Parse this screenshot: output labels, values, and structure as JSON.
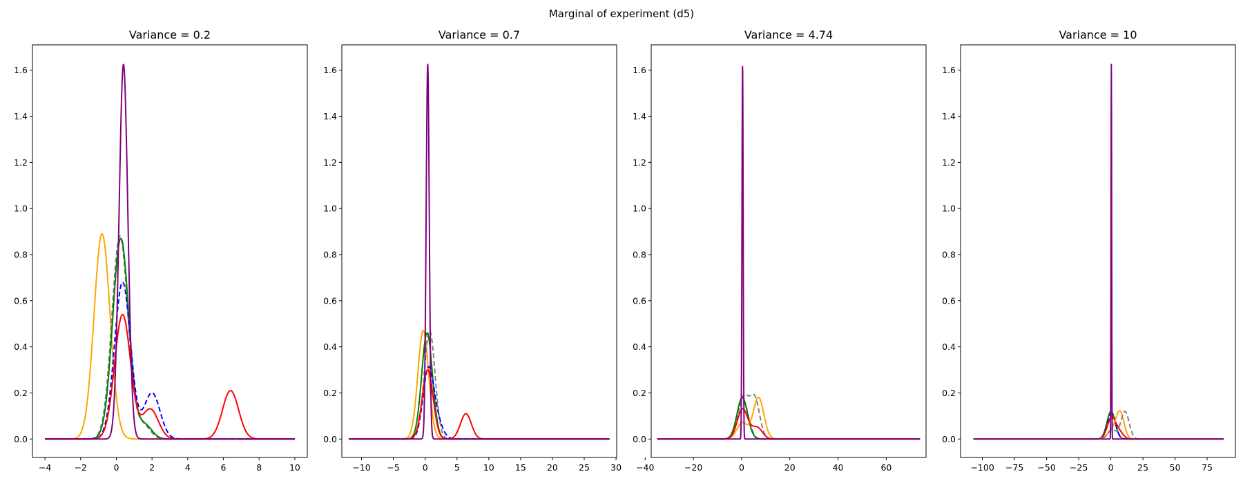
{
  "figure": {
    "suptitle": "Marginal of experiment (d5)"
  },
  "colors": {
    "orange": "#FFA500",
    "green": "#008000",
    "gray": "#808080",
    "blue": "#0000FF",
    "red": "#FF0000",
    "purple": "#800080"
  },
  "chart_data": [
    {
      "type": "line",
      "title": "Variance = 0.2",
      "xlim": [
        -4.7,
        10.7
      ],
      "ylim": [
        -0.08,
        1.71
      ],
      "xticks": [
        -4,
        -2,
        0,
        2,
        4,
        6,
        8,
        10
      ],
      "yticks": [
        0.0,
        0.2,
        0.4,
        0.6,
        0.8,
        1.0,
        1.2,
        1.4,
        1.6
      ],
      "xrange": [
        -4,
        10
      ],
      "grid": false,
      "series": [
        {
          "color": "orange",
          "style": "solid",
          "components": [
            [
              0.89,
              -0.8,
              0.45
            ]
          ]
        },
        {
          "color": "gray",
          "style": "dashed",
          "components": [
            [
              0.88,
              0.2,
              0.45
            ],
            [
              0.06,
              1.5,
              0.4
            ]
          ]
        },
        {
          "color": "green",
          "style": "solid",
          "components": [
            [
              0.87,
              0.25,
              0.45
            ],
            [
              0.06,
              1.6,
              0.4
            ]
          ]
        },
        {
          "color": "blue",
          "style": "dashed",
          "components": [
            [
              0.68,
              0.35,
              0.45
            ],
            [
              0.2,
              2.0,
              0.45
            ]
          ]
        },
        {
          "color": "red",
          "style": "solid",
          "components": [
            [
              0.54,
              0.35,
              0.45
            ],
            [
              0.13,
              1.9,
              0.45
            ],
            [
              0.21,
              6.4,
              0.45
            ]
          ]
        },
        {
          "color": "purple",
          "style": "solid",
          "components": [
            [
              1.625,
              0.4,
              0.245
            ]
          ]
        }
      ]
    },
    {
      "type": "line",
      "title": "Variance = 0.7",
      "xlim": [
        -13.1,
        30.1
      ],
      "ylim": [
        -0.08,
        1.71
      ],
      "xticks": [
        -10,
        -5,
        0,
        5,
        10,
        15,
        20,
        25,
        30
      ],
      "yticks": [
        0.0,
        0.2,
        0.4,
        0.6,
        0.8,
        1.0,
        1.2,
        1.4,
        1.6
      ],
      "xrange": [
        -12,
        29
      ],
      "grid": false,
      "series": [
        {
          "color": "orange",
          "style": "solid",
          "components": [
            [
              0.47,
              -0.3,
              0.85
            ]
          ]
        },
        {
          "color": "gray",
          "style": "dashed",
          "components": [
            [
              0.47,
              0.7,
              0.85
            ]
          ]
        },
        {
          "color": "green",
          "style": "solid",
          "components": [
            [
              0.46,
              0.3,
              0.85
            ]
          ]
        },
        {
          "color": "blue",
          "style": "dashed",
          "components": [
            [
              0.3,
              0.5,
              0.85
            ],
            [
              0.06,
              2.0,
              0.85
            ]
          ]
        },
        {
          "color": "red",
          "style": "solid",
          "components": [
            [
              0.3,
              0.4,
              0.85
            ],
            [
              0.11,
              6.4,
              0.85
            ]
          ]
        },
        {
          "color": "purple",
          "style": "solid",
          "components": [
            [
              1.625,
              0.4,
              0.245
            ]
          ]
        }
      ]
    },
    {
      "type": "line",
      "title": "Variance = 4.74",
      "xlim": [
        -37.5,
        76.5
      ],
      "ylim": [
        -0.08,
        1.71
      ],
      "xticks": [
        -40,
        -20,
        0,
        20,
        40,
        60
      ],
      "yticks": [
        0.0,
        0.2,
        0.4,
        0.6,
        0.8,
        1.0,
        1.2,
        1.4,
        1.6
      ],
      "xrange": [
        -35,
        74
      ],
      "grid": false,
      "series": [
        {
          "color": "blue",
          "style": "dashed",
          "components": [
            [
              0.17,
              0.5,
              2.2
            ]
          ]
        },
        {
          "color": "gray",
          "style": "dashed",
          "components": [
            [
              0.18,
              0.8,
              2.2
            ],
            [
              0.17,
              5.5,
              2.0
            ]
          ]
        },
        {
          "color": "green",
          "style": "solid",
          "components": [
            [
              0.18,
              0.3,
              2.2
            ]
          ]
        },
        {
          "color": "orange",
          "style": "solid",
          "components": [
            [
              0.07,
              0.2,
              2.2
            ],
            [
              0.18,
              7.0,
              2.2
            ]
          ]
        },
        {
          "color": "red",
          "style": "solid",
          "components": [
            [
              0.13,
              0.4,
              2.2
            ],
            [
              0.05,
              6.4,
              2.2
            ]
          ]
        },
        {
          "color": "purple",
          "style": "solid",
          "components": [
            [
              1.625,
              0.4,
              0.245
            ]
          ]
        }
      ]
    },
    {
      "type": "line",
      "title": "Variance = 10",
      "xlim": [
        -117,
        97
      ],
      "ylim": [
        -0.08,
        1.71
      ],
      "xticks": [
        -100,
        -75,
        -50,
        -25,
        0,
        25,
        50,
        75
      ],
      "yticks": [
        0.0,
        0.2,
        0.4,
        0.6,
        0.8,
        1.0,
        1.2,
        1.4,
        1.6
      ],
      "xrange": [
        -107,
        88
      ],
      "grid": false,
      "series": [
        {
          "color": "green",
          "style": "solid",
          "components": [
            [
              0.12,
              0.2,
              3.2
            ]
          ]
        },
        {
          "color": "blue",
          "style": "dashed",
          "components": [
            [
              0.11,
              0.5,
              3.2
            ]
          ]
        },
        {
          "color": "red",
          "style": "solid",
          "components": [
            [
              0.09,
              0.4,
              3.2
            ],
            [
              0.03,
              6.4,
              3.2
            ]
          ]
        },
        {
          "color": "orange",
          "style": "solid",
          "components": [
            [
              0.03,
              0.2,
              3.2
            ],
            [
              0.12,
              7.0,
              3.2
            ]
          ]
        },
        {
          "color": "gray",
          "style": "dashed",
          "components": [
            [
              0.04,
              0.8,
              3.2
            ],
            [
              0.12,
              11.0,
              3.2
            ]
          ]
        },
        {
          "color": "purple",
          "style": "solid",
          "components": [
            [
              1.625,
              0.4,
              0.245
            ]
          ]
        }
      ]
    }
  ]
}
